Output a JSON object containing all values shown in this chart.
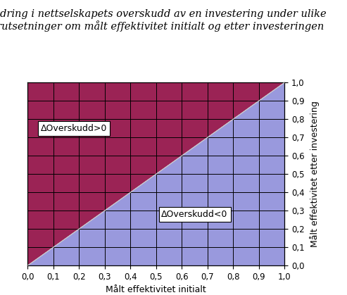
{
  "title_line1": "Endring i nettselskapets overskudd av en investering under ulike",
  "title_line2": "forutsetninger om målt effektivitet initialt og etter investeringen",
  "xlabel": "Målt effektivitet initialt",
  "ylabel": "Målt effektivitet etter investering",
  "xlim": [
    0.0,
    1.0
  ],
  "ylim": [
    0.0,
    1.0
  ],
  "xticks": [
    0.0,
    0.1,
    0.2,
    0.3,
    0.4,
    0.5,
    0.6,
    0.7,
    0.8,
    0.9,
    1.0
  ],
  "yticks": [
    0.0,
    0.1,
    0.2,
    0.3,
    0.4,
    0.5,
    0.6,
    0.7,
    0.8,
    0.9,
    1.0
  ],
  "color_upper": "#9B2355",
  "color_lower": "#9999DD",
  "label_upper": "ΔOverskudd>0",
  "label_lower": "ΔOverskudd<0",
  "grid_color": "#000000",
  "grid_linewidth": 0.7,
  "title_fontsize": 10.5,
  "label_fontsize": 9,
  "tick_fontsize": 8.5,
  "annotation_fontsize": 9,
  "diag_color": "#cccccc",
  "background_color": "#ffffff",
  "fig_facecolor": "#ffffff"
}
